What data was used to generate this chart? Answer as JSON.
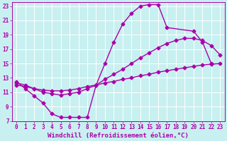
{
  "xlabel": "Windchill (Refroidissement éolien,°C)",
  "bg_color": "#c8f0f0",
  "line_color": "#aa00aa",
  "grid_color": "#ffffff",
  "xlim": [
    -0.5,
    23.5
  ],
  "ylim": [
    7,
    23.5
  ],
  "xticks": [
    0,
    1,
    2,
    3,
    4,
    5,
    6,
    7,
    8,
    9,
    10,
    11,
    12,
    13,
    14,
    15,
    16,
    17,
    18,
    19,
    20,
    21,
    22,
    23
  ],
  "yticks": [
    7,
    9,
    11,
    13,
    15,
    17,
    19,
    21,
    23
  ],
  "line1_x": [
    0,
    1,
    2,
    3,
    4,
    5,
    6,
    7,
    8,
    9,
    10,
    11,
    12,
    13,
    14,
    15,
    16,
    17,
    20,
    21,
    22
  ],
  "line1_y": [
    12.5,
    11.5,
    10.5,
    9.5,
    8.0,
    7.5,
    7.5,
    7.5,
    7.5,
    12.0,
    15.0,
    18.0,
    20.5,
    22.0,
    23.0,
    23.2,
    23.2,
    20.0,
    19.5,
    18.0,
    15.0
  ],
  "line2_x": [
    0,
    1,
    2,
    3,
    4,
    5,
    6,
    7,
    8,
    9,
    10,
    11,
    12,
    13,
    14,
    15,
    16,
    17,
    18,
    19,
    20,
    21,
    22,
    23
  ],
  "line2_y": [
    12.0,
    11.8,
    11.5,
    11.3,
    11.2,
    11.2,
    11.3,
    11.5,
    11.8,
    12.0,
    12.3,
    12.5,
    12.8,
    13.0,
    13.3,
    13.5,
    13.8,
    14.0,
    14.2,
    14.4,
    14.6,
    14.8,
    14.9,
    15.0
  ],
  "line3_x": [
    0,
    1,
    2,
    3,
    4,
    5,
    6,
    7,
    8,
    9,
    10,
    11,
    12,
    13,
    14,
    15,
    16,
    17,
    18,
    19,
    20,
    21,
    22,
    23
  ],
  "line3_y": [
    12.3,
    12.0,
    11.5,
    11.0,
    10.8,
    10.6,
    10.8,
    11.0,
    11.5,
    12.0,
    12.8,
    13.5,
    14.2,
    15.0,
    15.8,
    16.5,
    17.2,
    17.8,
    18.2,
    18.5,
    18.5,
    18.2,
    17.5,
    16.2
  ],
  "marker": "D",
  "markersize": 2.5,
  "linewidth": 1.0,
  "tick_labelsize": 5.5,
  "xlabel_fontsize": 6.5
}
